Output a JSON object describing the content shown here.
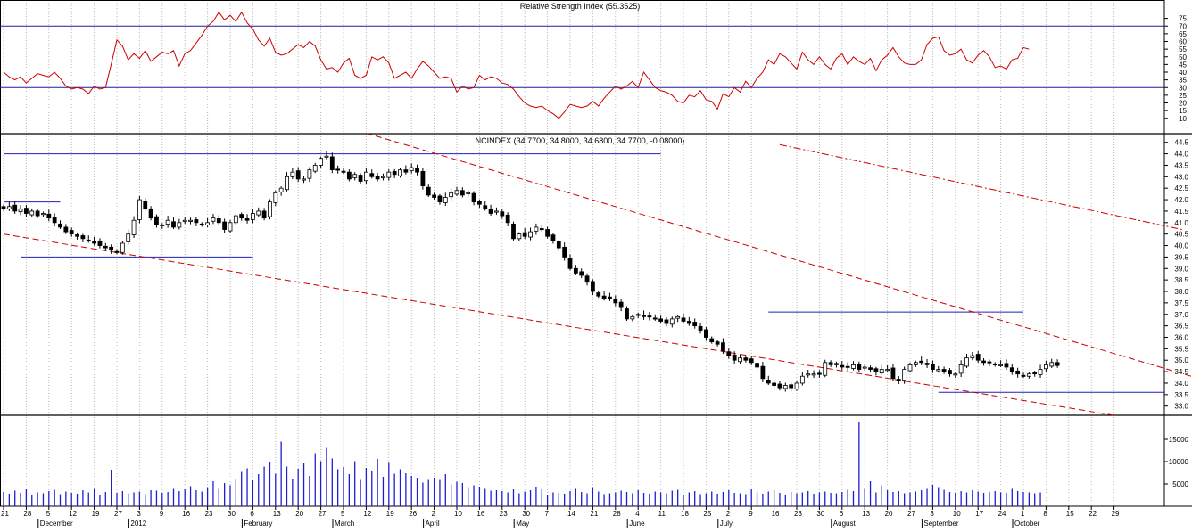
{
  "chart_data": {
    "type": "candlestick",
    "rsi": {
      "title": "Relative Strength Index (55.3525)",
      "ylim": [
        0,
        80
      ],
      "ticks": [
        10,
        15,
        20,
        25,
        30,
        35,
        40,
        45,
        50,
        55,
        60,
        65,
        70,
        75
      ],
      "levels": [
        30,
        70
      ],
      "values": [
        40,
        37,
        35,
        37,
        33,
        36,
        39,
        38,
        37,
        40,
        36,
        31,
        29,
        30,
        29,
        26,
        31,
        29,
        30,
        45,
        61,
        57,
        48,
        52,
        49,
        54,
        47,
        50,
        53,
        52,
        54,
        44,
        52,
        54,
        59,
        64,
        70,
        73,
        79,
        74,
        77,
        73,
        79,
        72,
        68,
        61,
        57,
        62,
        53,
        51,
        52,
        55,
        58,
        56,
        60,
        57,
        48,
        42,
        43,
        40,
        46,
        49,
        38,
        36,
        38,
        50,
        48,
        50,
        46,
        36,
        38,
        40,
        36,
        42,
        47,
        44,
        40,
        36,
        37,
        36,
        27,
        31,
        29,
        30,
        38,
        35,
        37,
        36,
        33,
        32,
        29,
        24,
        20,
        18,
        17,
        18,
        15,
        13,
        10,
        14,
        19,
        18,
        17,
        18,
        21,
        18,
        23,
        27,
        31,
        29,
        31,
        34,
        30,
        40,
        35,
        30,
        28,
        27,
        25,
        21,
        20,
        25,
        24,
        28,
        22,
        21,
        16,
        26,
        24,
        30,
        27,
        34,
        30,
        36,
        40,
        48,
        45,
        52,
        50,
        46,
        42,
        53,
        48,
        45,
        50,
        45,
        42,
        49,
        52,
        45,
        50,
        47,
        45,
        49,
        41,
        48,
        51,
        56,
        50,
        46,
        45,
        45,
        48,
        58,
        62,
        63,
        54,
        51,
        52,
        55,
        48,
        46,
        51,
        54,
        50,
        43,
        44,
        42,
        48,
        49,
        56,
        55
      ]
    },
    "price": {
      "title": "NCINDEX (34.7700, 34.8000, 34.6800, 34.7700, -0.08000)",
      "ylim": [
        32.6,
        44.8
      ],
      "ticks": [
        33.0,
        33.5,
        34.0,
        34.5,
        35.0,
        35.5,
        36.0,
        36.5,
        37.0,
        37.5,
        38.0,
        38.5,
        39.0,
        39.5,
        40.0,
        40.5,
        41.0,
        41.5,
        42.0,
        42.5,
        43.0,
        43.5,
        44.0,
        44.5
      ],
      "closes": [
        41.6,
        41.7,
        41.5,
        41.6,
        41.4,
        41.5,
        41.3,
        41.4,
        41.2,
        41.0,
        40.8,
        40.6,
        40.5,
        40.4,
        40.3,
        40.2,
        40.1,
        40.0,
        39.9,
        39.8,
        39.7,
        40.1,
        40.5,
        41.1,
        42.0,
        41.6,
        41.2,
        40.9,
        40.9,
        41.1,
        40.8,
        41.0,
        41.1,
        41.1,
        41.0,
        40.9,
        41.0,
        41.2,
        41.0,
        40.7,
        41.0,
        41.3,
        41.2,
        41.1,
        41.4,
        41.5,
        41.2,
        41.9,
        42.3,
        42.5,
        43.0,
        43.2,
        42.9,
        42.9,
        43.3,
        43.5,
        43.8,
        43.9,
        43.3,
        43.3,
        43.2,
        42.9,
        43.1,
        42.8,
        43.2,
        43.0,
        42.9,
        43.0,
        43.2,
        43.1,
        43.3,
        43.2,
        43.4,
        43.2,
        42.6,
        42.2,
        42.1,
        41.9,
        42.1,
        42.3,
        42.4,
        42.2,
        42.3,
        41.9,
        41.8,
        41.6,
        41.4,
        41.5,
        41.3,
        41.0,
        40.3,
        40.5,
        40.4,
        40.6,
        40.8,
        40.7,
        40.4,
        40.2,
        39.9,
        39.5,
        39.0,
        38.8,
        38.7,
        38.4,
        38.0,
        37.8,
        37.7,
        37.7,
        37.5,
        37.3,
        36.8,
        36.9,
        37.0,
        36.9,
        36.9,
        36.8,
        36.7,
        36.6,
        36.8,
        36.9,
        36.7,
        36.6,
        36.5,
        36.3,
        36.0,
        35.8,
        35.7,
        35.4,
        35.2,
        35.0,
        35.1,
        35.0,
        34.9,
        34.7,
        34.2,
        34.0,
        33.9,
        33.8,
        33.9,
        33.8,
        34.0,
        34.3,
        34.4,
        34.4,
        34.4,
        34.9,
        34.8,
        34.8,
        34.7,
        34.7,
        34.8,
        34.6,
        34.7,
        34.6,
        34.5,
        34.6,
        34.6,
        34.2,
        34.1,
        34.6,
        34.8,
        34.9,
        34.9,
        34.8,
        34.6,
        34.6,
        34.5,
        34.4,
        34.4,
        34.8,
        35.1,
        35.2,
        35.0,
        34.9,
        34.9,
        34.8,
        34.8,
        34.7,
        34.5,
        34.4,
        34.3,
        34.4,
        34.4,
        34.6,
        34.8,
        34.9,
        34.77
      ]
    },
    "volume": {
      "ylim": [
        0,
        20000
      ],
      "ticks": [
        5000,
        10000,
        15000
      ],
      "values": [
        3200,
        2800,
        3500,
        3000,
        3800,
        2600,
        3100,
        2900,
        3400,
        3700,
        2700,
        3300,
        3000,
        2800,
        3600,
        3100,
        3900,
        2500,
        3200,
        8200,
        3000,
        3400,
        2900,
        3100,
        3300,
        2700,
        3600,
        3500,
        3000,
        3200,
        3900,
        3400,
        3800,
        4500,
        3600,
        3300,
        4100,
        5600,
        3900,
        5200,
        4700,
        6100,
        7700,
        8500,
        5800,
        7200,
        8900,
        9800,
        7300,
        14500,
        8900,
        6200,
        8400,
        9600,
        6800,
        11900,
        10100,
        13100,
        10700,
        8300,
        8800,
        7200,
        10100,
        5900,
        8600,
        7900,
        10600,
        6600,
        9700,
        7300,
        8300,
        7400,
        6800,
        6400,
        5300,
        5900,
        6400,
        5900,
        7200,
        4900,
        5500,
        5200,
        4100,
        4700,
        4200,
        3900,
        3500,
        3600,
        3400,
        3100,
        3800,
        2900,
        3300,
        3600,
        4200,
        3800,
        2600,
        3100,
        3000,
        2800,
        3400,
        3900,
        3200,
        2900,
        4100,
        3300,
        2700,
        2900,
        3100,
        3500,
        3200,
        2900,
        3600,
        3000,
        2800,
        3300,
        3100,
        2900,
        3500,
        3700,
        2600,
        3100,
        3400,
        2700,
        2900,
        3300,
        2800,
        3200,
        3600,
        3000,
        2900,
        2700,
        3800,
        3100,
        2800,
        3300,
        3600,
        3000,
        2600,
        3200,
        2900,
        3100,
        3400,
        2800,
        3100,
        3300,
        3000,
        2900,
        3200,
        3700,
        3400,
        18800,
        3900,
        5600,
        3100,
        4700,
        3600,
        3200,
        3400,
        2900,
        3100,
        3300,
        3600,
        3900,
        4800,
        4100,
        3700,
        3200,
        3000,
        3400,
        3100,
        3600,
        3300,
        3000,
        3200,
        3400,
        3100,
        3000,
        3900,
        3400,
        3200,
        3100,
        2900,
        3100
      ]
    },
    "x_axis": {
      "day_labels": [
        "21",
        "28",
        "5",
        "12",
        "19",
        "27",
        "3",
        "9",
        "16",
        "23",
        "30",
        "6",
        "13",
        "20",
        "27",
        "5",
        "12",
        "19",
        "26",
        "2",
        "10",
        "16",
        "23",
        "30",
        "7",
        "14",
        "21",
        "28",
        "4",
        "11",
        "18",
        "25",
        "2",
        "9",
        "16",
        "23",
        "30",
        "6",
        "13",
        "20",
        "27",
        "3",
        "10",
        "17",
        "24",
        "1",
        "8",
        "15",
        "22",
        "29"
      ],
      "month_labels": [
        {
          "label": "December",
          "index": 2
        },
        {
          "label": "2012",
          "index": 6
        },
        {
          "label": "February",
          "index": 11
        },
        {
          "label": "March",
          "index": 15
        },
        {
          "label": "April",
          "index": 19
        },
        {
          "label": "May",
          "index": 23
        },
        {
          "label": "June",
          "index": 28
        },
        {
          "label": "July",
          "index": 32
        },
        {
          "label": "August",
          "index": 37
        },
        {
          "label": "September",
          "index": 41
        },
        {
          "label": "October",
          "index": 45
        }
      ]
    },
    "annotations": {
      "horizontal_lines": [
        {
          "value": 44.0,
          "from_bar": 0,
          "to_bar": 116
        },
        {
          "value": 41.9,
          "from_bar": 0,
          "to_bar": 10
        },
        {
          "value": 39.5,
          "from_bar": 3,
          "to_bar": 44
        },
        {
          "value": 37.1,
          "from_bar": 135,
          "to_bar": 180
        },
        {
          "value": 33.6,
          "from_bar": 165,
          "to_bar": 205
        }
      ],
      "trendlines": [
        {
          "style": "dashed",
          "from": [
            0,
            40.5
          ],
          "to": [
            196,
            32.6
          ]
        },
        {
          "style": "dashed",
          "from": [
            64,
            44.9
          ],
          "to": [
            222,
            33.4
          ]
        },
        {
          "style": "dashdot",
          "from": [
            137,
            44.4
          ],
          "to": [
            208,
            40.7
          ]
        }
      ]
    }
  }
}
